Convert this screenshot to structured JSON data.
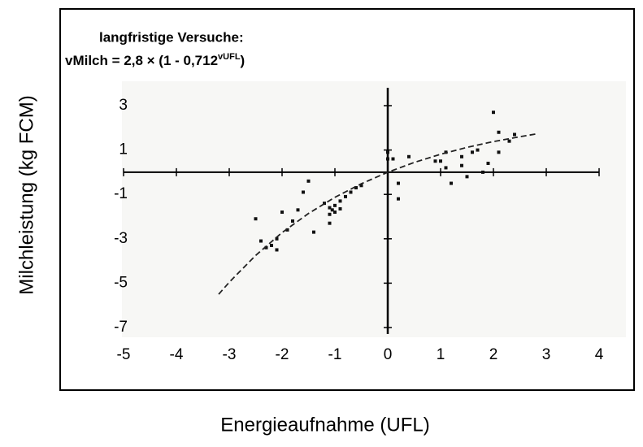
{
  "chart_data": {
    "type": "scatter",
    "title": "langfristige Versuche:",
    "formula": {
      "base": "vMilch = 2,8 × (1 - 0,712",
      "exponent": "vUFL",
      "close": ")"
    },
    "x_label": "Energieaufnahme (UFL)",
    "y_label": "Milchleistung (kg FCM)",
    "xlim": [
      -5,
      4
    ],
    "ylim": [
      -7,
      3
    ],
    "xticks": [
      -5,
      -4,
      -3,
      -2,
      -1,
      0,
      1,
      2,
      3,
      4
    ],
    "yticks": [
      3,
      1,
      -1,
      -3,
      -5,
      -7
    ],
    "series": [
      {
        "color": "#111111",
        "x": [
          -2.5,
          -2.4,
          -2.3,
          -2.2,
          -2.1,
          -2.0,
          -2.1,
          -1.9,
          -1.8,
          -1.7,
          -1.6,
          -1.5,
          -1.4,
          -1.2,
          -1.1,
          -1.1,
          -1.0,
          -1.0,
          -0.9,
          -0.8,
          -0.7,
          -1.1,
          -1.05,
          -0.9,
          -0.6,
          -0.5,
          0.0,
          0.0,
          0.1,
          0.2,
          0.2,
          0.4,
          0.9,
          1.0,
          1.1,
          1.1,
          1.2,
          1.4,
          1.4,
          1.5,
          1.6,
          1.7,
          1.8,
          1.9,
          2.0,
          2.1,
          2.1,
          2.3,
          2.4
        ],
        "values": [
          -2.1,
          -3.1,
          -3.4,
          -3.3,
          -3.0,
          -1.8,
          -3.5,
          -2.6,
          -2.2,
          -1.7,
          -0.9,
          -0.4,
          -2.7,
          -1.4,
          -1.6,
          -2.3,
          -1.5,
          -1.8,
          -1.3,
          -1.1,
          -0.9,
          -1.9,
          -1.7,
          -1.65,
          -0.7,
          -0.6,
          0.9,
          0.6,
          0.6,
          -0.5,
          -1.2,
          0.7,
          0.5,
          0.5,
          0.9,
          0.2,
          -0.5,
          0.7,
          0.3,
          -0.2,
          0.9,
          1.0,
          0.0,
          0.4,
          2.7,
          1.8,
          0.9,
          1.4,
          1.7
        ]
      },
      {
        "type": "line",
        "color": "#222222",
        "x": [
          -3.2,
          -3.0,
          -2.5,
          -2.0,
          -1.5,
          -1.0,
          -0.5,
          0.0,
          0.5,
          1.0,
          1.5,
          2.0,
          2.5,
          2.8
        ],
        "values": [
          -5.5,
          -4.96,
          -3.75,
          -2.72,
          -1.86,
          -1.13,
          -0.52,
          0.0,
          0.44,
          0.81,
          1.12,
          1.38,
          1.6,
          1.72
        ]
      }
    ]
  }
}
